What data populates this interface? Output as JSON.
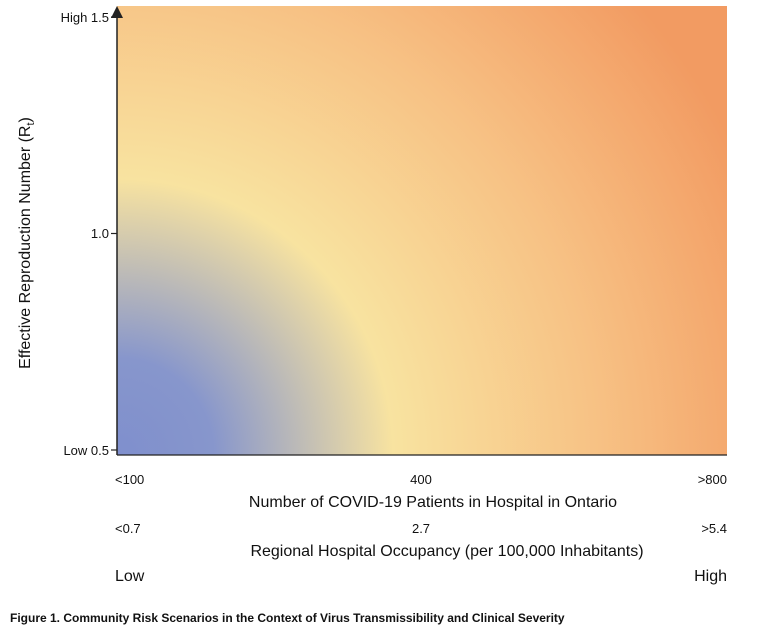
{
  "chart_data": {
    "type": "heatmap",
    "title": "",
    "y_axis": {
      "label": "Effective Reproduction Number (R",
      "label_subscript": "t",
      "label_close": ")",
      "ylim": [
        0.5,
        1.5
      ],
      "ticks": [
        {
          "value": 1.5,
          "label": "High 1.5"
        },
        {
          "value": 1.0,
          "label": "1.0"
        },
        {
          "value": 0.5,
          "label": "Low 0.5"
        }
      ]
    },
    "x_axis": {
      "label": "Number of COVID-19 Patients in Hospital in Ontario",
      "ticks": [
        {
          "position": "left",
          "label": "<100"
        },
        {
          "position": "center",
          "label": "400"
        },
        {
          "position": "right",
          "label": ">800"
        }
      ]
    },
    "x_axis_secondary": {
      "label": "Regional Hospital Occupancy (per 100,000 Inhabitants)",
      "ticks": [
        {
          "position": "left",
          "label": "<0.7"
        },
        {
          "position": "center",
          "label": "2.7"
        },
        {
          "position": "right",
          "label": ">5.4"
        }
      ]
    },
    "scale": {
      "low_label": "Low",
      "high_label": "High"
    },
    "colors": {
      "low": "#7f8fcd",
      "mid": "#f8e3a0",
      "high": "#f29b62"
    },
    "grid": false,
    "legend": "none"
  },
  "caption": "Figure 1. Community Risk Scenarios in the Context of Virus Transmissibility and Clinical Severity"
}
